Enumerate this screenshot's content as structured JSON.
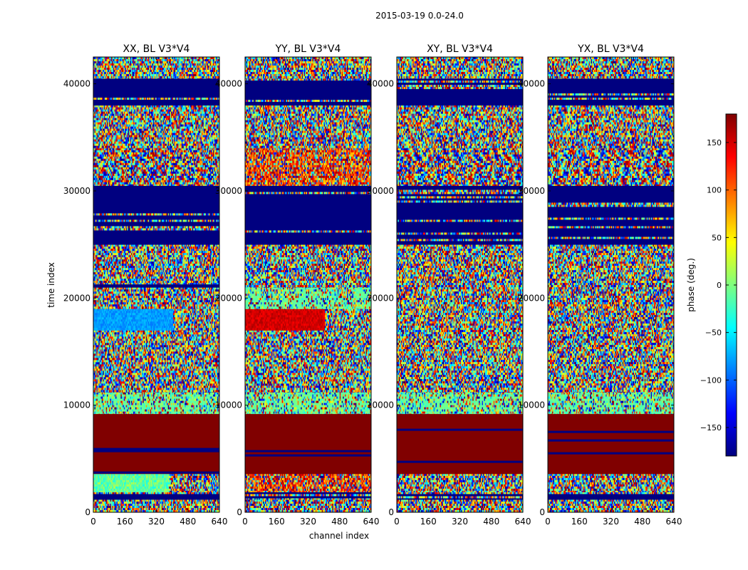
{
  "figure": {
    "suptitle": "2015-03-19 0.0-24.0",
    "xlabel": "channel index",
    "ylabel": "time index"
  },
  "colorbar": {
    "label": "phase (deg.)",
    "range": [
      -180,
      180
    ],
    "ticks": [
      150,
      100,
      50,
      0,
      -50,
      -100,
      -150
    ],
    "tick_labels": [
      "150",
      "100",
      "50",
      "0",
      "−50",
      "−100",
      "−150"
    ],
    "colormap": "jet",
    "colors": [
      "#00007f",
      "#0000ff",
      "#007fff",
      "#00ffff",
      "#7fff7f",
      "#ffff00",
      "#ff7f00",
      "#ff0000",
      "#7f0000"
    ]
  },
  "chart_data": [
    {
      "type": "heatmap",
      "title": "XX, BL V3*V4",
      "x_range": [
        0,
        640
      ],
      "y_range": [
        0,
        42500
      ],
      "x_ticks": [
        0,
        160,
        320,
        480,
        640
      ],
      "y_ticks": [
        0,
        10000,
        20000,
        30000,
        40000
      ],
      "value": "phase (deg.)",
      "bands": [
        {
          "y0": 0,
          "y1": 1200,
          "pattern": "noise"
        },
        {
          "y0": 1200,
          "y1": 1900,
          "pattern": "flagged"
        },
        {
          "y0": 1900,
          "y1": 3600,
          "pattern": "mixed"
        },
        {
          "y0": 3600,
          "y1": 9200,
          "pattern": "saturated"
        },
        {
          "y0": 9200,
          "y1": 11200,
          "pattern": "light"
        },
        {
          "y0": 11200,
          "y1": 17000,
          "pattern": "noise"
        },
        {
          "y0": 17000,
          "y1": 19000,
          "pattern": "cyan"
        },
        {
          "y0": 19000,
          "y1": 21000,
          "pattern": "noise"
        },
        {
          "y0": 21000,
          "y1": 21300,
          "pattern": "flagged"
        },
        {
          "y0": 21300,
          "y1": 25000,
          "pattern": "noise"
        },
        {
          "y0": 25000,
          "y1": 30500,
          "pattern": "flagged"
        },
        {
          "y0": 30500,
          "y1": 34000,
          "pattern": "fringe"
        },
        {
          "y0": 34000,
          "y1": 38000,
          "pattern": "noise"
        },
        {
          "y0": 38000,
          "y1": 40500,
          "pattern": "flagged"
        },
        {
          "y0": 40500,
          "y1": 42500,
          "pattern": "noise"
        }
      ]
    },
    {
      "type": "heatmap",
      "title": "YY, BL V3*V4",
      "x_range": [
        0,
        640
      ],
      "y_range": [
        0,
        42500
      ],
      "x_ticks": [
        0,
        160,
        320,
        480,
        640
      ],
      "y_ticks": [
        0,
        10000,
        20000,
        30000,
        40000
      ],
      "value": "phase (deg.)",
      "bands": [
        {
          "y0": 0,
          "y1": 1200,
          "pattern": "noise"
        },
        {
          "y0": 1200,
          "y1": 1900,
          "pattern": "flagged"
        },
        {
          "y0": 1900,
          "y1": 3600,
          "pattern": "warm"
        },
        {
          "y0": 3600,
          "y1": 9200,
          "pattern": "saturated"
        },
        {
          "y0": 9200,
          "y1": 11200,
          "pattern": "light"
        },
        {
          "y0": 11200,
          "y1": 17000,
          "pattern": "noise"
        },
        {
          "y0": 17000,
          "y1": 19000,
          "pattern": "red"
        },
        {
          "y0": 19000,
          "y1": 21000,
          "pattern": "light"
        },
        {
          "y0": 21000,
          "y1": 25000,
          "pattern": "noise"
        },
        {
          "y0": 25000,
          "y1": 30500,
          "pattern": "flagged"
        },
        {
          "y0": 30500,
          "y1": 34000,
          "pattern": "warm"
        },
        {
          "y0": 34000,
          "y1": 38000,
          "pattern": "noise"
        },
        {
          "y0": 38000,
          "y1": 40500,
          "pattern": "flagged"
        },
        {
          "y0": 40500,
          "y1": 42500,
          "pattern": "noise"
        }
      ]
    },
    {
      "type": "heatmap",
      "title": "XY, BL V3*V4",
      "x_range": [
        0,
        640
      ],
      "y_range": [
        0,
        42500
      ],
      "x_ticks": [
        0,
        160,
        320,
        480,
        640
      ],
      "y_ticks": [
        0,
        10000,
        20000,
        30000,
        40000
      ],
      "value": "phase (deg.)",
      "bands": [
        {
          "y0": 0,
          "y1": 1200,
          "pattern": "noise"
        },
        {
          "y0": 1200,
          "y1": 1900,
          "pattern": "flagged"
        },
        {
          "y0": 1900,
          "y1": 3600,
          "pattern": "noise"
        },
        {
          "y0": 3600,
          "y1": 9200,
          "pattern": "saturated"
        },
        {
          "y0": 9200,
          "y1": 11200,
          "pattern": "light"
        },
        {
          "y0": 11200,
          "y1": 25000,
          "pattern": "noise"
        },
        {
          "y0": 25000,
          "y1": 30500,
          "pattern": "flagged"
        },
        {
          "y0": 30500,
          "y1": 34000,
          "pattern": "fringe"
        },
        {
          "y0": 34000,
          "y1": 38000,
          "pattern": "noise"
        },
        {
          "y0": 38000,
          "y1": 40500,
          "pattern": "flagged"
        },
        {
          "y0": 40500,
          "y1": 42500,
          "pattern": "noise"
        }
      ]
    },
    {
      "type": "heatmap",
      "title": "YX, BL V3*V4",
      "x_range": [
        0,
        640
      ],
      "y_range": [
        0,
        42500
      ],
      "x_ticks": [
        0,
        160,
        320,
        480,
        640
      ],
      "y_ticks": [
        0,
        10000,
        20000,
        30000,
        40000
      ],
      "value": "phase (deg.)",
      "bands": [
        {
          "y0": 0,
          "y1": 1200,
          "pattern": "noise"
        },
        {
          "y0": 1200,
          "y1": 1900,
          "pattern": "flagged"
        },
        {
          "y0": 1900,
          "y1": 3600,
          "pattern": "noise"
        },
        {
          "y0": 3600,
          "y1": 9200,
          "pattern": "saturated"
        },
        {
          "y0": 9200,
          "y1": 11200,
          "pattern": "light"
        },
        {
          "y0": 11200,
          "y1": 25000,
          "pattern": "noise"
        },
        {
          "y0": 25000,
          "y1": 30500,
          "pattern": "flagged"
        },
        {
          "y0": 30500,
          "y1": 34000,
          "pattern": "fringe"
        },
        {
          "y0": 34000,
          "y1": 38000,
          "pattern": "noise"
        },
        {
          "y0": 38000,
          "y1": 40500,
          "pattern": "flagged"
        },
        {
          "y0": 40500,
          "y1": 42500,
          "pattern": "noise"
        }
      ]
    }
  ]
}
